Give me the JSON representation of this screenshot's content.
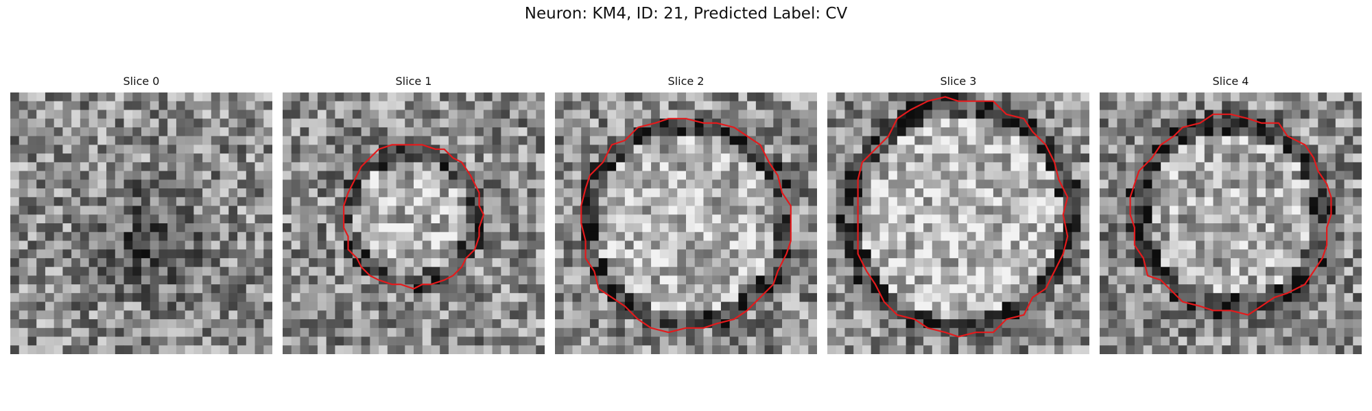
{
  "figure": {
    "title": "Neuron: KM4, ID: 21, Predicted Label: CV"
  },
  "slices": [
    {
      "label": "Slice 0",
      "has_contour": false
    },
    {
      "label": "Slice 1",
      "has_contour": true
    },
    {
      "label": "Slice 2",
      "has_contour": true
    },
    {
      "label": "Slice 3",
      "has_contour": true
    },
    {
      "label": "Slice 4",
      "has_contour": true
    }
  ],
  "colors": {
    "contour": "#e41a1c",
    "background": "#ffffff"
  }
}
